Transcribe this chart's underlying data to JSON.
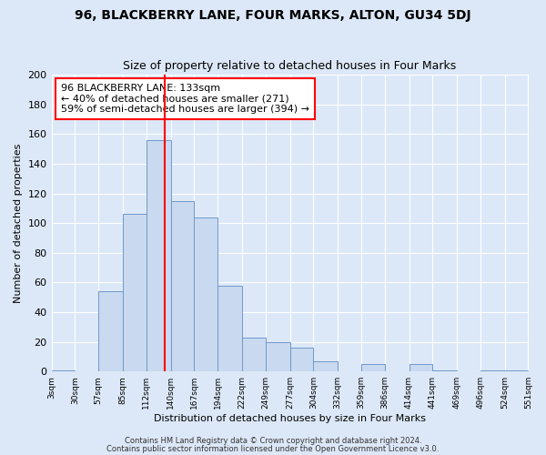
{
  "title": "96, BLACKBERRY LANE, FOUR MARKS, ALTON, GU34 5DJ",
  "subtitle": "Size of property relative to detached houses in Four Marks",
  "xlabel": "Distribution of detached houses by size in Four Marks",
  "ylabel": "Number of detached properties",
  "bin_edges": [
    3,
    30,
    57,
    85,
    112,
    140,
    167,
    194,
    222,
    249,
    277,
    304,
    332,
    359,
    386,
    414,
    441,
    469,
    496,
    524,
    551
  ],
  "bar_heights": [
    1,
    0,
    54,
    106,
    156,
    115,
    104,
    58,
    23,
    20,
    16,
    7,
    0,
    5,
    0,
    5,
    1,
    0,
    1,
    1
  ],
  "bar_color": "#c9d9f0",
  "bar_edge_color": "#7099c8",
  "vline_x": 133,
  "vline_color": "red",
  "annotation_line1": "96 BLACKBERRY LANE: 133sqm",
  "annotation_line2": "← 40% of detached houses are smaller (271)",
  "annotation_line3": "59% of semi-detached houses are larger (394) →",
  "annotation_box_color": "white",
  "annotation_box_edge_color": "red",
  "ylim": [
    0,
    200
  ],
  "yticks": [
    0,
    20,
    40,
    60,
    80,
    100,
    120,
    140,
    160,
    180,
    200
  ],
  "tick_labels": [
    "3sqm",
    "30sqm",
    "57sqm",
    "85sqm",
    "112sqm",
    "140sqm",
    "167sqm",
    "194sqm",
    "222sqm",
    "249sqm",
    "277sqm",
    "304sqm",
    "332sqm",
    "359sqm",
    "386sqm",
    "414sqm",
    "441sqm",
    "469sqm",
    "496sqm",
    "524sqm",
    "551sqm"
  ],
  "footer1": "Contains HM Land Registry data © Crown copyright and database right 2024.",
  "footer2": "Contains public sector information licensed under the Open Government Licence v3.0.",
  "background_color": "#dce8f8",
  "plot_bg_color": "#dce8f8",
  "title_fontsize": 10,
  "subtitle_fontsize": 9,
  "ylabel_fontsize": 8,
  "xlabel_fontsize": 8,
  "ytick_fontsize": 8,
  "xtick_fontsize": 6.5,
  "footer_fontsize": 6,
  "annotation_fontsize": 8
}
